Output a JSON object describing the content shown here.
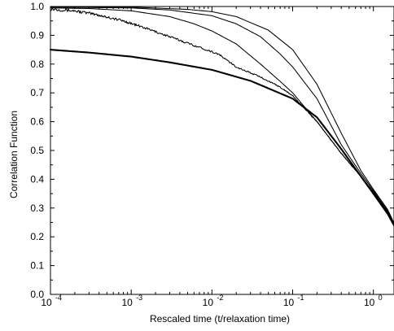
{
  "chart_data": {
    "type": "line",
    "title": "",
    "xlabel": "Rescaled time (t/relaxation time)",
    "ylabel": "Correlation Function",
    "x_scale": "log",
    "xlim": [
      0.0001,
      1.8
    ],
    "ylim": [
      0.0,
      1.0
    ],
    "grid": false,
    "legend": "none",
    "x_ticks": [
      {
        "value": 0.0001,
        "base": "10",
        "exp": "-4"
      },
      {
        "value": 0.001,
        "base": "10",
        "exp": "-3"
      },
      {
        "value": 0.01,
        "base": "10",
        "exp": "-2"
      },
      {
        "value": 0.1,
        "base": "10",
        "exp": "-1"
      },
      {
        "value": 1,
        "base": "10",
        "exp": "0"
      }
    ],
    "y_ticks": [
      {
        "value": 0.0,
        "label": "0.0"
      },
      {
        "value": 0.1,
        "label": "0.1"
      },
      {
        "value": 0.2,
        "label": "0.2"
      },
      {
        "value": 0.3,
        "label": "0.3"
      },
      {
        "value": 0.4,
        "label": "0.4"
      },
      {
        "value": 0.5,
        "label": "0.5"
      },
      {
        "value": 0.6,
        "label": "0.6"
      },
      {
        "value": 0.7,
        "label": "0.7"
      },
      {
        "value": 0.8,
        "label": "0.8"
      },
      {
        "value": 0.9,
        "label": "0.9"
      },
      {
        "value": 1.0,
        "label": "1.0"
      }
    ],
    "series": [
      {
        "color": "#000000",
        "stroke": "bold",
        "points": [
          [
            0.0001,
            0.85
          ],
          [
            0.0003,
            0.84
          ],
          [
            0.001,
            0.826
          ],
          [
            0.003,
            0.806
          ],
          [
            0.01,
            0.78
          ],
          [
            0.03,
            0.742
          ],
          [
            0.1,
            0.68
          ],
          [
            0.2,
            0.615
          ],
          [
            0.4,
            0.505
          ],
          [
            0.7,
            0.41
          ],
          [
            1.0,
            0.35
          ],
          [
            1.5,
            0.28
          ],
          [
            1.8,
            0.24
          ]
        ]
      },
      {
        "color": "#000000",
        "stroke": "thin",
        "points": [
          [
            0.0001,
            0.992
          ],
          [
            0.0002,
            0.985
          ],
          [
            0.0004,
            0.97
          ],
          [
            0.0008,
            0.95
          ],
          [
            0.0015,
            0.925
          ],
          [
            0.003,
            0.895
          ],
          [
            0.006,
            0.865
          ],
          [
            0.012,
            0.835
          ],
          [
            0.02,
            0.79
          ],
          [
            0.04,
            0.755
          ],
          [
            0.07,
            0.72
          ],
          [
            0.1,
            0.69
          ],
          [
            0.2,
            0.6
          ],
          [
            0.4,
            0.49
          ],
          [
            0.7,
            0.41
          ],
          [
            1.0,
            0.355
          ],
          [
            1.5,
            0.285
          ],
          [
            1.8,
            0.24
          ]
        ]
      },
      {
        "color": "#000000",
        "stroke": "thin",
        "points": [
          [
            0.0001,
            0.995
          ],
          [
            0.0003,
            0.993
          ],
          [
            0.001,
            0.985
          ],
          [
            0.003,
            0.965
          ],
          [
            0.006,
            0.94
          ],
          [
            0.01,
            0.915
          ],
          [
            0.02,
            0.87
          ],
          [
            0.04,
            0.8
          ],
          [
            0.07,
            0.74
          ],
          [
            0.1,
            0.7
          ],
          [
            0.2,
            0.6
          ],
          [
            0.4,
            0.49
          ],
          [
            0.7,
            0.41
          ],
          [
            1.0,
            0.355
          ],
          [
            1.5,
            0.285
          ],
          [
            1.8,
            0.24
          ]
        ]
      },
      {
        "color": "#000000",
        "stroke": "thin",
        "points": [
          [
            0.0001,
            0.998
          ],
          [
            0.001,
            0.995
          ],
          [
            0.003,
            0.988
          ],
          [
            0.01,
            0.968
          ],
          [
            0.02,
            0.94
          ],
          [
            0.04,
            0.895
          ],
          [
            0.07,
            0.835
          ],
          [
            0.1,
            0.79
          ],
          [
            0.2,
            0.68
          ],
          [
            0.4,
            0.52
          ],
          [
            0.7,
            0.42
          ],
          [
            1.0,
            0.36
          ],
          [
            1.5,
            0.29
          ],
          [
            1.8,
            0.245
          ]
        ]
      },
      {
        "color": "#000000",
        "stroke": "thin",
        "points": [
          [
            0.0001,
            0.999
          ],
          [
            0.001,
            0.998
          ],
          [
            0.005,
            0.99
          ],
          [
            0.01,
            0.982
          ],
          [
            0.02,
            0.965
          ],
          [
            0.05,
            0.918
          ],
          [
            0.1,
            0.85
          ],
          [
            0.2,
            0.73
          ],
          [
            0.4,
            0.56
          ],
          [
            0.7,
            0.43
          ],
          [
            1.0,
            0.365
          ],
          [
            1.5,
            0.295
          ],
          [
            1.8,
            0.248
          ]
        ]
      }
    ]
  }
}
